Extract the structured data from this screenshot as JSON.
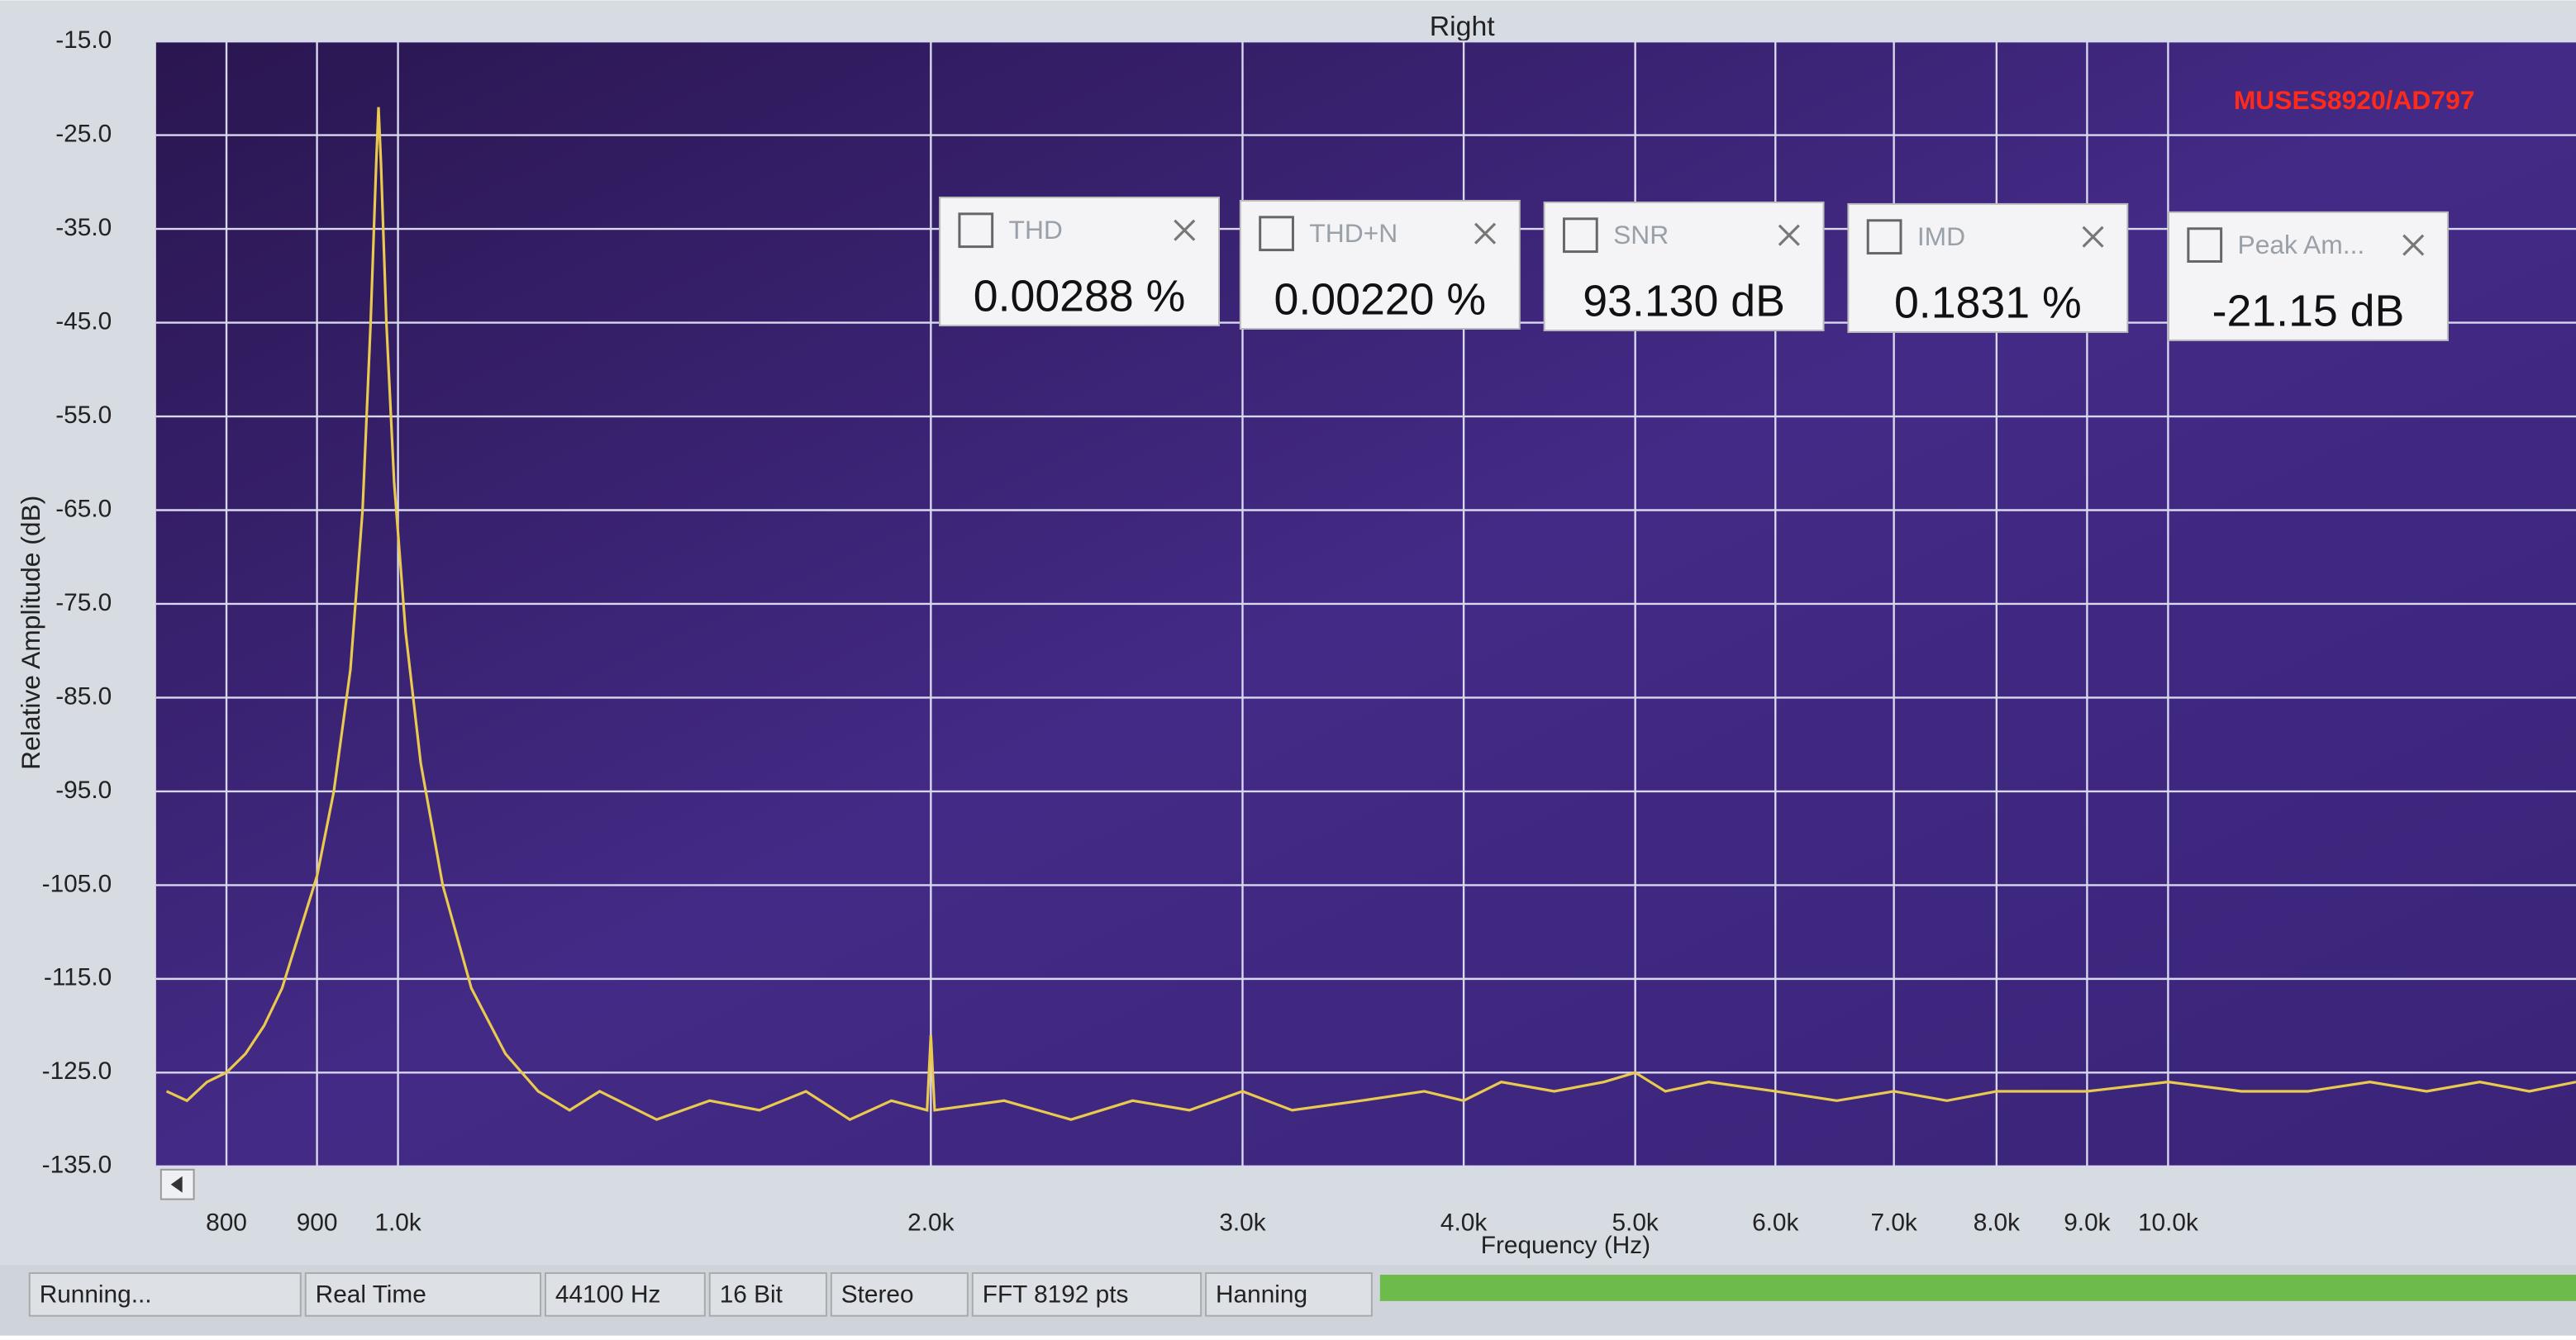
{
  "chart_data": {
    "type": "line",
    "title": "Right",
    "annotation": "MUSES8920/AD797",
    "x_label": "Frequency (Hz)",
    "y_label": "Relative Amplitude (dB)",
    "x": [
      740,
      760,
      780,
      800,
      820,
      840,
      860,
      880,
      900,
      920,
      940,
      955,
      965,
      972,
      975,
      978,
      985,
      995,
      1010,
      1030,
      1060,
      1100,
      1150,
      1200,
      1250,
      1300,
      1400,
      1500,
      1600,
      1700,
      1800,
      1900,
      1990,
      2000,
      2010,
      2200,
      2400,
      2600,
      2800,
      3000,
      3200,
      3500,
      3800,
      4000,
      4200,
      4500,
      4800,
      5000,
      5200,
      5500,
      6000,
      6500,
      7000,
      7500,
      8000,
      9000,
      10000,
      11000,
      12000,
      13000,
      14000,
      15000,
      16000,
      17000
    ],
    "values": [
      -127,
      -128,
      -126,
      -125,
      -123,
      -120,
      -116,
      -110,
      -104,
      -95,
      -82,
      -65,
      -45,
      -28,
      -22,
      -28,
      -45,
      -62,
      -78,
      -92,
      -105,
      -116,
      -123,
      -127,
      -129,
      -127,
      -130,
      -128,
      -129,
      -127,
      -130,
      -128,
      -129,
      -121,
      -129,
      -128,
      -130,
      -128,
      -129,
      -127,
      -129,
      -128,
      -127,
      -128,
      -126,
      -127,
      -126,
      -125,
      -127,
      -126,
      -127,
      -128,
      -127,
      -128,
      -127,
      -127,
      -126,
      -127,
      -127,
      -126,
      -127,
      -126,
      -127,
      -126
    ],
    "color": "#e9c94e",
    "xscale": "log",
    "grid": true,
    "xlim": [
      730,
      17000
    ],
    "xticks": [
      800,
      900,
      {
        "value": 1000,
        "label": "1.0k"
      },
      {
        "value": 2000,
        "label": "2.0k"
      },
      {
        "value": 3000,
        "label": "3.0k"
      },
      {
        "value": 4000,
        "label": "4.0k"
      },
      {
        "value": 5000,
        "label": "5.0k"
      },
      {
        "value": 6000,
        "label": "6.0k"
      },
      {
        "value": 7000,
        "label": "7.0k"
      },
      {
        "value": 8000,
        "label": "8.0k"
      },
      {
        "value": 9000,
        "label": "9.0k"
      },
      {
        "value": 10000,
        "label": "10.0k"
      }
    ],
    "ylim": [
      -135,
      -15
    ],
    "yticks": [
      {
        "value": -15,
        "label": "-15.0"
      },
      {
        "value": -25,
        "label": "-25.0"
      },
      {
        "value": -35,
        "label": "-35.0"
      },
      {
        "value": -45,
        "label": "-45.0"
      },
      {
        "value": -55,
        "label": "-55.0"
      },
      {
        "value": -65,
        "label": "-65.0"
      },
      {
        "value": -75,
        "label": "-75.0"
      },
      {
        "value": -85,
        "label": "-85.0"
      },
      {
        "value": -95,
        "label": "-95.0"
      },
      {
        "value": -105,
        "label": "-105.0"
      },
      {
        "value": -115,
        "label": "-115.0"
      },
      {
        "value": -125,
        "label": "-125.0"
      },
      {
        "value": -135,
        "label": "-135.0"
      }
    ]
  },
  "meters": [
    {
      "label": "THD",
      "value": "0.00288 %"
    },
    {
      "label": "THD+N",
      "value": "0.00220 %"
    },
    {
      "label": "SNR",
      "value": "93.130 dB"
    },
    {
      "label": "IMD",
      "value": "0.1831 %"
    },
    {
      "label": "Peak Am...",
      "value": "-21.15 dB"
    }
  ],
  "status_bar": [
    "Running...",
    "Real Time",
    "44100 Hz",
    "16 Bit",
    "Stereo",
    "FFT 8192 pts",
    "Hanning"
  ]
}
